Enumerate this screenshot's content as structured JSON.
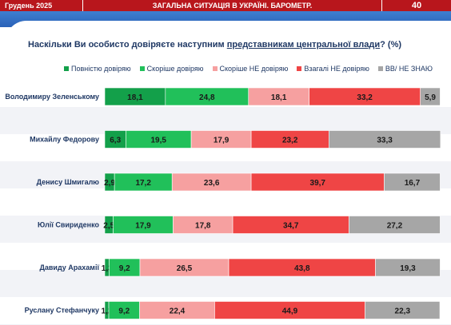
{
  "header": {
    "date": "Грудень 2025",
    "title": "ЗАГАЛЬНА СИТУАЦІЯ В УКРАЇНІ. БАРОМЕТР.",
    "page_number": "40"
  },
  "question": {
    "prefix": "Наскільки Ви особисто довіряєте наступним ",
    "link": "представникам центральної влади",
    "suffix": "? (%)"
  },
  "colors": {
    "header_red": "#b8161c",
    "header_blue": "#2a62b8",
    "text_navy": "#1f3864"
  },
  "chart_data": {
    "type": "bar",
    "orientation": "horizontal",
    "stacked": true,
    "xlim": [
      0,
      100
    ],
    "legend_position": "top",
    "categories": [
      "Володимиру Зеленському",
      "Михайлу Федорову",
      "Денису Шмигалю",
      "Юлії Свириденко",
      "Давиду Арахамії",
      "Руслану Стефанчуку"
    ],
    "series": [
      {
        "name": "Повністю довіряю",
        "color": "#13a04a",
        "values": [
          18.1,
          6.3,
          2.9,
          2.5,
          1.3,
          1.2
        ]
      },
      {
        "name": "Скоріше довіряю",
        "color": "#21c05a",
        "values": [
          24.8,
          19.5,
          17.2,
          17.9,
          9.2,
          9.2
        ]
      },
      {
        "name": "Скоріше НЕ довіряю",
        "color": "#f6a0a0",
        "values": [
          18.1,
          17.9,
          23.6,
          17.8,
          26.5,
          22.4
        ]
      },
      {
        "name": "Взагалі НЕ  довіряю",
        "color": "#ef4545",
        "values": [
          33.2,
          23.2,
          39.7,
          34.7,
          43.8,
          44.9
        ]
      },
      {
        "name": "ВВ/ НЕ ЗНАЮ",
        "color": "#a6a6a6",
        "values": [
          5.9,
          33.3,
          16.7,
          27.2,
          19.3,
          22.3
        ]
      }
    ]
  }
}
